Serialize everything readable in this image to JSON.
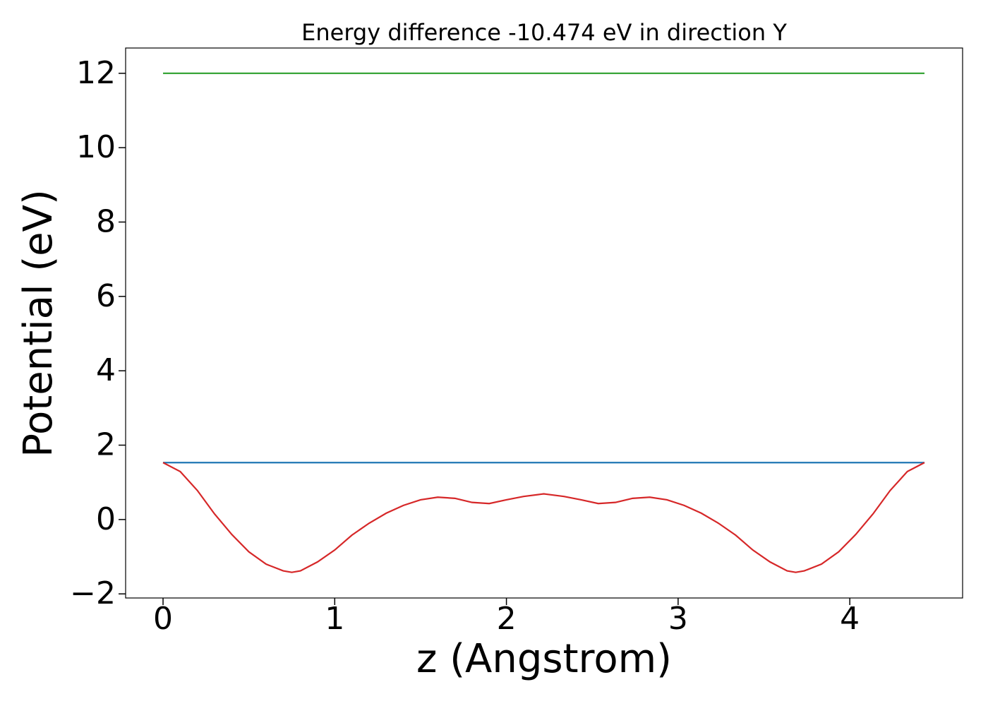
{
  "chart_data": {
    "type": "line",
    "title": "Energy difference -10.474 eV in direction Y",
    "xlabel": "z (Angstrom)",
    "ylabel": "Potential (eV)",
    "xlim": [
      -0.218,
      4.657
    ],
    "ylim": [
      -2.11,
      12.68
    ],
    "xticks": [
      0,
      1,
      2,
      3,
      4
    ],
    "yticks": [
      {
        "value": -2,
        "label": "−2"
      },
      0,
      2,
      4,
      6,
      8,
      10,
      12
    ],
    "series": [
      {
        "color": "#1f77b4",
        "x": [
          0,
          4.435
        ],
        "values": [
          1.53,
          1.53
        ]
      },
      {
        "color": "#2ca02c",
        "x": [
          0,
          4.435
        ],
        "values": [
          12,
          12
        ]
      },
      {
        "color": "#d62728",
        "x": [
          0,
          0.1,
          0.2,
          0.3,
          0.4,
          0.5,
          0.6,
          0.7,
          0.75,
          0.8,
          0.9,
          1.0,
          1.1,
          1.2,
          1.3,
          1.4,
          1.5,
          1.6,
          1.7,
          1.8,
          1.9,
          2.0,
          2.1,
          2.2,
          2.2175,
          2.235,
          2.335,
          2.435,
          2.535,
          2.635,
          2.735,
          2.835,
          2.935,
          3.035,
          3.135,
          3.235,
          3.335,
          3.435,
          3.535,
          3.635,
          3.685,
          3.735,
          3.835,
          3.935,
          4.035,
          4.135,
          4.235,
          4.335,
          4.435
        ],
        "values": [
          1.53,
          1.29,
          0.78,
          0.15,
          -0.4,
          -0.87,
          -1.2,
          -1.38,
          -1.42,
          -1.38,
          -1.14,
          -0.82,
          -0.42,
          -0.1,
          0.17,
          0.38,
          0.53,
          0.6,
          0.57,
          0.46,
          0.43,
          0.53,
          0.62,
          0.68,
          0.69,
          0.68,
          0.62,
          0.53,
          0.43,
          0.46,
          0.57,
          0.6,
          0.53,
          0.38,
          0.17,
          -0.1,
          -0.42,
          -0.82,
          -1.14,
          -1.38,
          -1.42,
          -1.38,
          -1.2,
          -0.87,
          -0.4,
          0.15,
          0.78,
          1.29,
          1.53
        ]
      }
    ]
  }
}
